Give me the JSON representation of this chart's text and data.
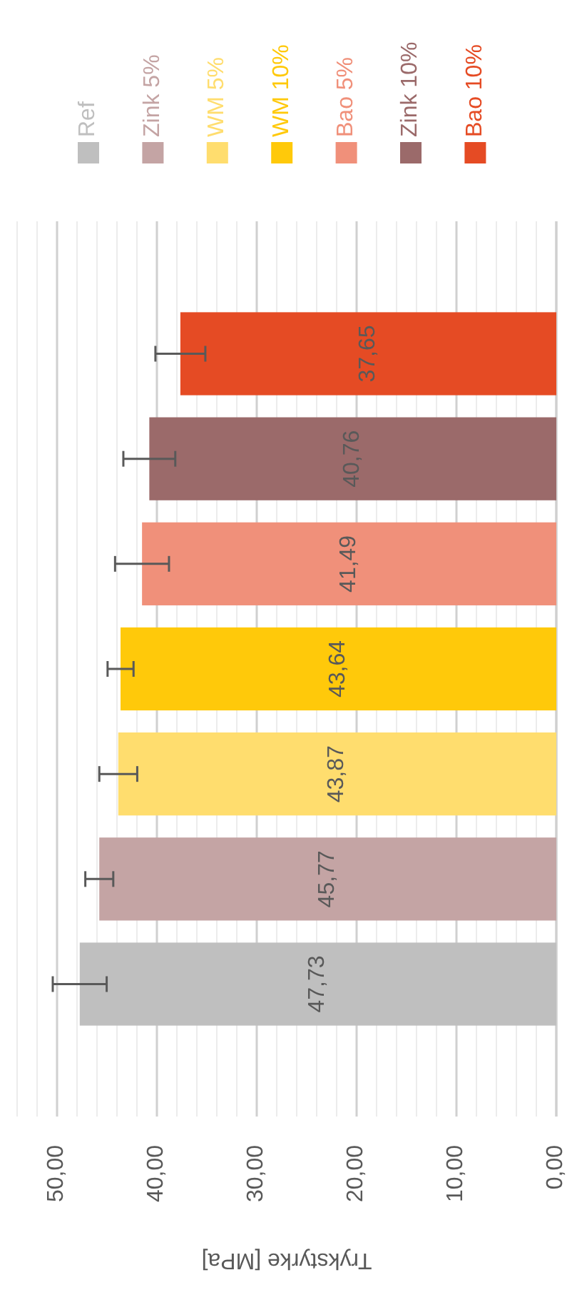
{
  "chart_data": {
    "type": "bar",
    "orientation": "horizontal",
    "xlabel": "Trykstyrke [MPa]",
    "categories": [
      null
    ],
    "series": [
      {
        "name": "Ref",
        "color": "#bfbfbf",
        "values": [
          47.73
        ],
        "errors": [
          2.7
        ],
        "value_labels": [
          "47,73"
        ]
      },
      {
        "name": "Zink 5%",
        "color": "#c4a4a4",
        "values": [
          45.77
        ],
        "errors": [
          1.4
        ],
        "value_labels": [
          "45,77"
        ]
      },
      {
        "name": "WM 5%",
        "color": "#ffdd6e",
        "values": [
          43.87
        ],
        "errors": [
          1.9
        ],
        "value_labels": [
          "43,87"
        ]
      },
      {
        "name": "WM 10%",
        "color": "#ffc90a",
        "values": [
          43.64
        ],
        "errors": [
          1.3
        ],
        "value_labels": [
          "43,64"
        ]
      },
      {
        "name": "Bao 5%",
        "color": "#f0907a",
        "values": [
          41.49
        ],
        "errors": [
          2.7
        ],
        "value_labels": [
          "41,49"
        ]
      },
      {
        "name": "Zink 10%",
        "color": "#9b6a6a",
        "values": [
          40.76
        ],
        "errors": [
          2.6
        ],
        "value_labels": [
          "40,76"
        ]
      },
      {
        "name": "Bao 10%",
        "color": "#e54b24",
        "values": [
          37.65
        ],
        "errors": [
          2.5
        ],
        "value_labels": [
          "37,65"
        ]
      }
    ],
    "xlim": [
      54,
      0
    ],
    "xticks": [
      {
        "value": 0,
        "label": "0,00"
      },
      {
        "value": 2,
        "label": null
      },
      {
        "value": 4,
        "label": null
      },
      {
        "value": 6,
        "label": null
      },
      {
        "value": 8,
        "label": null
      },
      {
        "value": 10,
        "label": "10,00"
      },
      {
        "value": 12,
        "label": null
      },
      {
        "value": 14,
        "label": null
      },
      {
        "value": 16,
        "label": null
      },
      {
        "value": 18,
        "label": null
      },
      {
        "value": 20,
        "label": "20,00"
      },
      {
        "value": 22,
        "label": null
      },
      {
        "value": 24,
        "label": null
      },
      {
        "value": 26,
        "label": null
      },
      {
        "value": 28,
        "label": null
      },
      {
        "value": 30,
        "label": "30,00"
      },
      {
        "value": 32,
        "label": null
      },
      {
        "value": 34,
        "label": null
      },
      {
        "value": 36,
        "label": null
      },
      {
        "value": 38,
        "label": null
      },
      {
        "value": 40,
        "label": "40,00"
      },
      {
        "value": 42,
        "label": null
      },
      {
        "value": 44,
        "label": null
      },
      {
        "value": 46,
        "label": null
      },
      {
        "value": 48,
        "label": null
      },
      {
        "value": 50,
        "label": "50,00"
      },
      {
        "value": 52,
        "label": null
      },
      {
        "value": 54,
        "label": null
      }
    ],
    "grid": "x",
    "legend": "top",
    "tick_labels": "x"
  }
}
